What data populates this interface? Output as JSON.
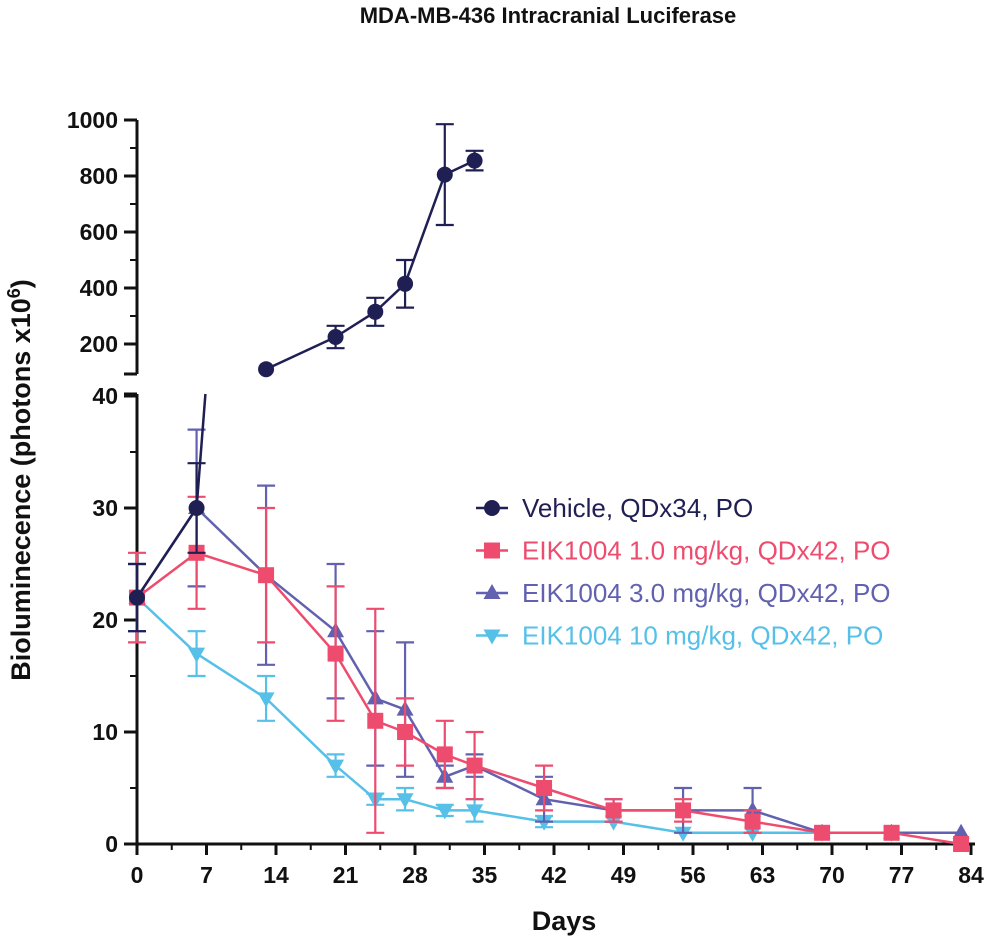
{
  "chart_data": {
    "type": "line",
    "title": "MDA-MB-436 Intracranial Luciferase",
    "xlabel": "Days",
    "ylabel": "Bioluminecence (photons x10",
    "ylabel_superscript": "6",
    "ylabel_suffix": ")",
    "x_ticks": [
      "0",
      "7",
      "14",
      "21",
      "28",
      "35",
      "42",
      "49",
      "56",
      "63",
      "70",
      "77",
      "84"
    ],
    "xlim": [
      0,
      84
    ],
    "y_axis_break": true,
    "y_lower": {
      "ylim": [
        0,
        40
      ],
      "ticks": [
        "0",
        "10",
        "20",
        "30",
        "40"
      ]
    },
    "y_upper": {
      "ylim": [
        100,
        1000
      ],
      "ticks": [
        "200",
        "400",
        "600",
        "800",
        "1000"
      ]
    },
    "legend_position": "right-center",
    "series": [
      {
        "name": "Vehicle, QDx34, PO",
        "color": "#1f1f54",
        "marker": "circle",
        "points": [
          {
            "x": 0,
            "y": 22,
            "err": 3
          },
          {
            "x": 6,
            "y": 30,
            "err": 4
          },
          {
            "x": 13,
            "y": 110,
            "err": 0
          },
          {
            "x": 20,
            "y": 225,
            "err": 40
          },
          {
            "x": 24,
            "y": 315,
            "err": 50
          },
          {
            "x": 27,
            "y": 415,
            "err": 85
          },
          {
            "x": 31,
            "y": 805,
            "err": 180
          },
          {
            "x": 34,
            "y": 855,
            "err": 35
          }
        ]
      },
      {
        "name": "EIK1004 1.0 mg/kg, QDx42, PO",
        "color": "#ee4c6e",
        "marker": "square",
        "points": [
          {
            "x": 0,
            "y": 22,
            "err": 4
          },
          {
            "x": 6,
            "y": 26,
            "err": 5
          },
          {
            "x": 13,
            "y": 24,
            "err": 6
          },
          {
            "x": 20,
            "y": 17,
            "err": 6
          },
          {
            "x": 24,
            "y": 11,
            "err": 10
          },
          {
            "x": 27,
            "y": 10,
            "err": 3
          },
          {
            "x": 31,
            "y": 8,
            "err": 3
          },
          {
            "x": 34,
            "y": 7,
            "err": 3
          },
          {
            "x": 41,
            "y": 5,
            "err": 2
          },
          {
            "x": 48,
            "y": 3,
            "err": 1
          },
          {
            "x": 55,
            "y": 3,
            "err": 1
          },
          {
            "x": 62,
            "y": 2,
            "err": 1
          },
          {
            "x": 69,
            "y": 1,
            "err": 0
          },
          {
            "x": 76,
            "y": 1,
            "err": 0
          },
          {
            "x": 83,
            "y": 0,
            "err": 0
          }
        ]
      },
      {
        "name": "EIK1004 3.0 mg/kg, QDx42, PO",
        "color": "#6161b0",
        "marker": "triangle-up",
        "points": [
          {
            "x": 0,
            "y": 22,
            "err": 3
          },
          {
            "x": 6,
            "y": 30,
            "err": 7
          },
          {
            "x": 13,
            "y": 24,
            "err": 8
          },
          {
            "x": 20,
            "y": 19,
            "err": 6
          },
          {
            "x": 24,
            "y": 13,
            "err": 6
          },
          {
            "x": 27,
            "y": 12,
            "err": 6
          },
          {
            "x": 31,
            "y": 6,
            "err": 1
          },
          {
            "x": 34,
            "y": 7,
            "err": 1
          },
          {
            "x": 41,
            "y": 4,
            "err": 2
          },
          {
            "x": 48,
            "y": 3,
            "err": 1
          },
          {
            "x": 55,
            "y": 3,
            "err": 2
          },
          {
            "x": 62,
            "y": 3,
            "err": 2
          },
          {
            "x": 69,
            "y": 1,
            "err": 0
          },
          {
            "x": 76,
            "y": 1,
            "err": 0
          },
          {
            "x": 83,
            "y": 1,
            "err": 0
          }
        ]
      },
      {
        "name": "EIK1004 10 mg/kg, QDx42, PO",
        "color": "#56c0e8",
        "marker": "triangle-down",
        "points": [
          {
            "x": 0,
            "y": 22,
            "err": 3
          },
          {
            "x": 6,
            "y": 17,
            "err": 2
          },
          {
            "x": 13,
            "y": 13,
            "err": 2
          },
          {
            "x": 20,
            "y": 7,
            "err": 1
          },
          {
            "x": 24,
            "y": 4,
            "err": 0.5
          },
          {
            "x": 27,
            "y": 4,
            "err": 1
          },
          {
            "x": 31,
            "y": 3,
            "err": 0.5
          },
          {
            "x": 34,
            "y": 3,
            "err": 1
          },
          {
            "x": 41,
            "y": 2,
            "err": 0.5
          },
          {
            "x": 48,
            "y": 2,
            "err": 0
          },
          {
            "x": 55,
            "y": 1,
            "err": 0
          },
          {
            "x": 62,
            "y": 1,
            "err": 0
          },
          {
            "x": 69,
            "y": 1,
            "err": 0
          },
          {
            "x": 76,
            "y": 1,
            "err": 0
          }
        ]
      }
    ]
  }
}
